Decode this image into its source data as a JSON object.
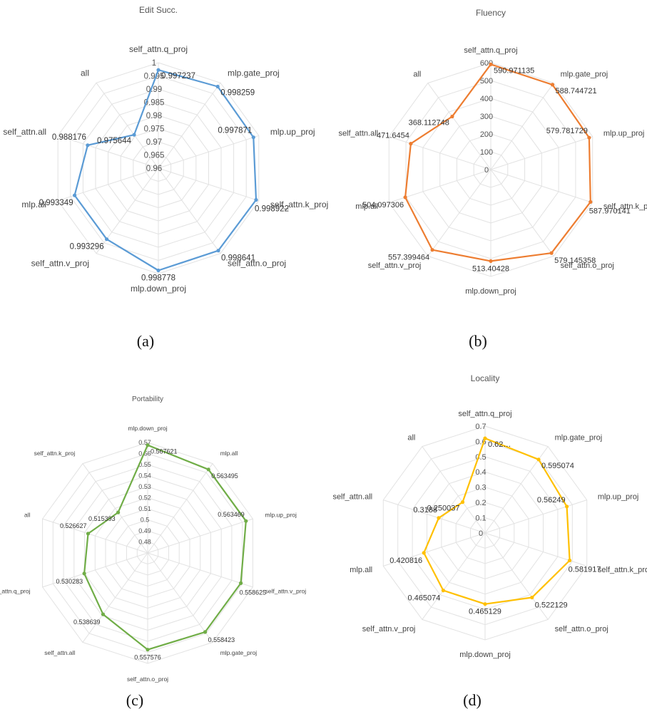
{
  "chart_data": [
    {
      "type": "radar",
      "title": "Edit Succ.",
      "caption": "(a)",
      "color": "#5b9bd5",
      "ticks": [
        "0.96",
        "0.965",
        "0.97",
        "0.975",
        "0.98",
        "0.985",
        "0.99",
        "0.995",
        "1"
      ],
      "rmin": 0.96,
      "rmax": 1,
      "categories": [
        "self_attn.q_proj",
        "mlp.gate_proj",
        "mlp.up_proj",
        "self_attn.k_proj",
        "self_attn.o_proj",
        "mlp.down_proj",
        "self_attn.v_proj",
        "mlp.all",
        "self_attn.all",
        "all"
      ],
      "values": [
        0.997237,
        0.998259,
        0.997871,
        0.998922,
        0.998641,
        0.998778,
        0.993296,
        0.993349,
        0.988176,
        0.975644
      ],
      "value_labels": [
        "0.997237",
        "0.998259",
        "0.997871",
        "0.998922",
        "0.998641",
        "0.998778",
        "0.993296",
        "0.993349",
        "0.988176",
        "0.975644"
      ]
    },
    {
      "type": "radar",
      "title": "Fluency",
      "caption": "(b)",
      "color": "#ed7d31",
      "ticks": [
        "0",
        "100",
        "200",
        "300",
        "400",
        "500",
        "600"
      ],
      "rmin": 0,
      "rmax": 600,
      "categories": [
        "self_attn.q_proj",
        "mlp.gate_proj",
        "mlp.up_proj",
        "self_attn.k_proj",
        "self_attn.o_proj",
        "mlp.down_proj",
        "self_attn.v_proj",
        "mlp.all",
        "self_attn.all",
        "all"
      ],
      "values": [
        590.971135,
        588.744721,
        579.781729,
        587.970141,
        579.145358,
        513.40428,
        557.399464,
        504.097306,
        471.6454,
        368.112748
      ],
      "value_labels": [
        "590.971135",
        "588.744721",
        "579.781729",
        "587.970141",
        "579.145358",
        "513.40428",
        "557.399464",
        "504.097306",
        "471.6454",
        "368.112748"
      ]
    },
    {
      "type": "radar",
      "title": "Portability",
      "caption": "(c)",
      "color": "#70ad47",
      "ticks": [
        "0.48",
        "0.49",
        "0.5",
        "0.51",
        "0.52",
        "0.53",
        "0.54",
        "0.55",
        "0.56",
        "0.57"
      ],
      "rmin": 0.47,
      "rmax": 0.57,
      "categories": [
        "mlp.down_proj",
        "mlp.all",
        "mlp.up_proj",
        "self_attn.v_proj",
        "mlp.gate_proj",
        "self_attn.o_proj",
        "self_attn.all",
        "self_attn.q_proj",
        "all",
        "self_attn.k_proj"
      ],
      "values": [
        0.567621,
        0.563495,
        0.563469,
        0.558625,
        0.558423,
        0.557576,
        0.538639,
        0.530283,
        0.526627,
        0.515393
      ],
      "value_labels": [
        "0.567621",
        "0.563495",
        "0.563469",
        "0.558625",
        "0.558423",
        "0.557576",
        "0.538639",
        "0.530283",
        "0.526627",
        "0.515393"
      ]
    },
    {
      "type": "radar",
      "title": "Locality",
      "caption": "(d)",
      "color": "#ffc000",
      "ticks": [
        "0",
        "0.1",
        "0.2",
        "0.3",
        "0.4",
        "0.5",
        "0.6",
        "0.7"
      ],
      "rmin": 0,
      "rmax": 0.7,
      "categories": [
        "self_attn.q_proj",
        "mlp.gate_proj",
        "mlp.up_proj",
        "self_attn.k_proj",
        "self_attn.o_proj",
        "mlp.down_proj",
        "self_attn.v_proj",
        "mlp.all",
        "self_attn.all",
        "all"
      ],
      "values": [
        0.62,
        0.595074,
        0.56249,
        0.581917,
        0.522129,
        0.465129,
        0.465074,
        0.420816,
        0.3188,
        0.250037
      ],
      "value_labels": [
        "0.62…",
        "0.595074",
        "0.56249",
        "0.581917",
        "0.522129",
        "0.465129",
        "0.465074",
        "0.420816",
        "0.3188",
        "0.250037"
      ]
    }
  ]
}
